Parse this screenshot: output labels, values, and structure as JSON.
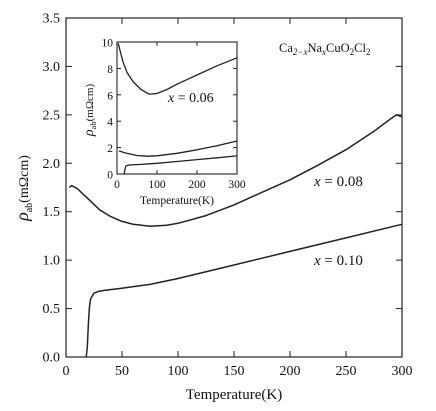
{
  "chart_data": [
    {
      "type": "line",
      "xlabel": "Temperature(K)",
      "ylabel_symbol": "ρ",
      "ylabel_sub": "ab",
      "ylabel_unit": "(mΩcm)",
      "xlim": [
        0,
        300
      ],
      "ylim": [
        0,
        3.5
      ],
      "xticks": [
        0,
        50,
        100,
        150,
        200,
        250,
        300
      ],
      "yticks": [
        0.0,
        0.5,
        1.0,
        1.5,
        2.0,
        2.5,
        3.0,
        3.5
      ],
      "compound": {
        "t1": "Ca",
        "s1": "2−x",
        "t2": "Na",
        "s2": "x",
        "t3": "CuO",
        "s3": "2",
        "t4": "Cl",
        "s4": "2"
      },
      "series": [
        {
          "label_prefix": "x",
          "label_value": " = 0.08",
          "x": [
            3,
            5,
            10,
            20,
            30,
            40,
            50,
            60,
            75,
            90,
            100,
            125,
            150,
            175,
            200,
            225,
            250,
            275,
            290,
            295,
            300
          ],
          "y": [
            1.75,
            1.77,
            1.74,
            1.63,
            1.52,
            1.45,
            1.4,
            1.37,
            1.35,
            1.36,
            1.38,
            1.46,
            1.57,
            1.7,
            1.83,
            1.98,
            2.14,
            2.33,
            2.46,
            2.5,
            2.48
          ]
        },
        {
          "label_prefix": "x",
          "label_value": " = 0.10",
          "x": [
            18,
            19,
            20,
            21,
            22,
            25,
            30,
            35,
            50,
            75,
            100,
            150,
            200,
            250,
            300
          ],
          "y": [
            0.0,
            0.1,
            0.35,
            0.52,
            0.6,
            0.66,
            0.68,
            0.69,
            0.71,
            0.75,
            0.81,
            0.95,
            1.09,
            1.23,
            1.37
          ]
        }
      ]
    },
    {
      "type": "line",
      "inset": true,
      "xlabel": "Temperature(K)",
      "ylabel_symbol": "ρ",
      "ylabel_sub": "ab",
      "ylabel_unit": "(mΩcm)",
      "xlim": [
        0,
        300
      ],
      "ylim": [
        0,
        10
      ],
      "xticks": [
        0,
        100,
        200,
        300
      ],
      "yticks": [
        0,
        2,
        4,
        6,
        8,
        10
      ],
      "series": [
        {
          "label_prefix": "x",
          "label_value": " = 0.06",
          "x": [
            3,
            8,
            15,
            25,
            40,
            60,
            80,
            100,
            125,
            150,
            200,
            250,
            300
          ],
          "y": [
            9.9,
            9.3,
            8.5,
            7.7,
            7.0,
            6.4,
            6.05,
            6.1,
            6.4,
            6.8,
            7.5,
            8.2,
            8.8
          ]
        },
        {
          "x": [
            5,
            20,
            50,
            75,
            100,
            150,
            200,
            250,
            300
          ],
          "y": [
            1.75,
            1.6,
            1.4,
            1.35,
            1.38,
            1.57,
            1.83,
            2.14,
            2.5
          ]
        },
        {
          "x": [
            18,
            20,
            22,
            30,
            50,
            100,
            150,
            200,
            250,
            300
          ],
          "y": [
            0.0,
            0.35,
            0.6,
            0.68,
            0.71,
            0.81,
            0.95,
            1.09,
            1.23,
            1.37
          ]
        }
      ]
    }
  ]
}
